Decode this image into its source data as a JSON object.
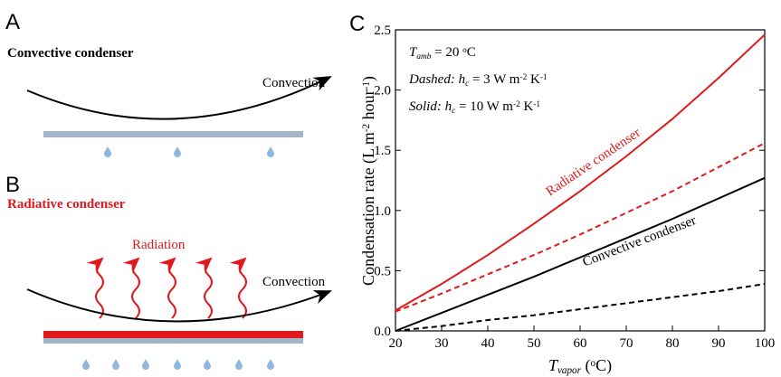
{
  "panels": {
    "a": {
      "letter": "A",
      "title": "Convective condenser",
      "arrow_label": "Convection"
    },
    "b": {
      "letter": "B",
      "title": "Radiative condenser",
      "radiation_label": "Radiation",
      "arrow_label": "Convection"
    }
  },
  "chart_data": {
    "type": "line",
    "letter": "C",
    "x": [
      20,
      30,
      40,
      50,
      60,
      70,
      80,
      90,
      100
    ],
    "xlim": [
      20,
      100
    ],
    "xticks": [
      20,
      30,
      40,
      50,
      60,
      70,
      80,
      90,
      100
    ],
    "ylim": [
      0,
      2.5
    ],
    "yticks": [
      {
        "value": 0,
        "label": "0.0"
      },
      0.5,
      {
        "value": 1,
        "label": "1.0"
      },
      1.5,
      {
        "value": 2,
        "label": "2.0"
      },
      2.5
    ],
    "ylabel": [
      [
        "Condensation rate (L m",
        "normal"
      ],
      [
        "-2",
        "sup"
      ],
      [
        " hour",
        "normal"
      ],
      [
        "-1",
        "sup"
      ],
      [
        ")",
        "normal"
      ]
    ],
    "xlabel": [
      [
        "T",
        "italic"
      ],
      [
        "vapor",
        "sub"
      ],
      [
        " (",
        "normal"
      ],
      [
        "o",
        "sup"
      ],
      [
        "C)",
        "normal"
      ]
    ],
    "series": [
      {
        "color": "#e0191c",
        "dash": false,
        "values": [
          0.17,
          0.39,
          0.63,
          0.89,
          1.16,
          1.45,
          1.76,
          2.1,
          2.46
        ]
      },
      {
        "color": "#e0191c",
        "dash": true,
        "values": [
          0.16,
          0.31,
          0.47,
          0.63,
          0.8,
          0.98,
          1.16,
          1.36,
          1.56
        ]
      },
      {
        "color": "#000000",
        "dash": false,
        "values": [
          0,
          0.15,
          0.3,
          0.45,
          0.61,
          0.77,
          0.93,
          1.1,
          1.27
        ]
      },
      {
        "color": "#000000",
        "dash": true,
        "values": [
          0,
          0.04,
          0.09,
          0.13,
          0.18,
          0.23,
          0.28,
          0.33,
          0.39
        ]
      }
    ],
    "annotations": [
      [
        [
          "T",
          "italic"
        ],
        [
          "amb",
          "sub"
        ],
        [
          " = 20 ",
          "normal"
        ],
        [
          "o",
          "sup"
        ],
        [
          "C",
          "normal"
        ]
      ],
      [
        [
          "Dashed: h",
          "italic"
        ],
        [
          "c",
          "sub"
        ],
        [
          " = 3 W m",
          "normal"
        ],
        [
          "-2",
          "sup"
        ],
        [
          " K",
          "normal"
        ],
        [
          "-1",
          "sup"
        ]
      ],
      [
        [
          "Solid: h",
          "italic"
        ],
        [
          "c",
          "sub"
        ],
        [
          " = 10 W m",
          "normal"
        ],
        [
          "-2",
          "sup"
        ],
        [
          " K",
          "normal"
        ],
        [
          "-1",
          "sup"
        ]
      ]
    ],
    "line_labels": [
      {
        "text": "Radiative condenser",
        "color": "#e0191c"
      },
      {
        "text": "Convective condenser",
        "color": "#000000"
      }
    ]
  }
}
